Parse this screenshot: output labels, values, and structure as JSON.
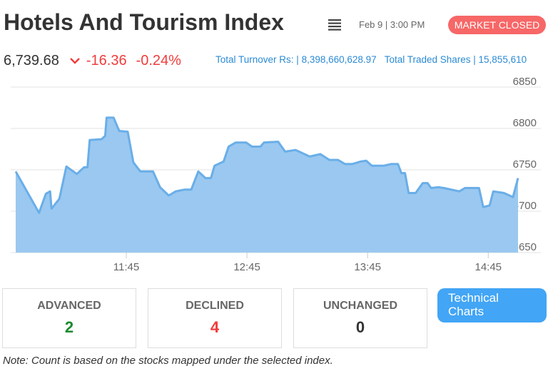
{
  "header": {
    "title": "Hotels And Tourism Index",
    "date": "Feb 9",
    "time": "3:00 PM",
    "status": "MARKET CLOSED"
  },
  "summary": {
    "value": "6,739.68",
    "change": "-16.36",
    "change_percent": "-0.24%",
    "turnover_label": "Total Turnover Rs:",
    "turnover": "8,398,660,628.97",
    "shares_label": "Total Traded Shares",
    "shares": "15,855,610"
  },
  "chart_data": {
    "type": "area",
    "color": "#6aaee8",
    "fill": "#9ac8f0",
    "grid": true,
    "x": [
      650,
      661.6,
      665,
      667.1,
      667.8,
      671.7,
      675.2,
      680.4,
      684,
      685.7,
      686.8,
      692.7,
      694.5,
      695.2,
      698.7,
      701.5,
      705.7,
      708.5,
      712,
      716.2,
      718.3,
      721.8,
      726.1,
      729.6,
      733.8,
      737.3,
      740.8,
      744.4,
      747.1,
      748.9,
      753.4,
      755.9,
      759.4,
      764.6,
      767.5,
      771.7,
      773.5,
      780.5,
      784,
      789.2,
      796.2,
      801.5,
      806,
      810.2,
      813.8,
      817.3,
      821.5,
      824.3,
      827.1,
      833.1,
      836.6,
      840.1,
      841.8,
      843.6,
      845.4,
      848.9,
      852.4,
      854.8,
      856.6,
      860.1,
      862.9,
      870.6,
      873.4,
      880.4,
      882.5,
      885.7,
      887.5,
      892.8,
      897.3,
      899.8
    ],
    "values": [
      6748,
      6698,
      6721,
      6724,
      6703,
      6715,
      6754,
      6745,
      6753,
      6753,
      6786,
      6787,
      6791,
      6813,
      6813,
      6797,
      6796,
      6759,
      6748,
      6748,
      6748,
      6729,
      6719,
      6724,
      6726,
      6726,
      6748,
      6740,
      6740,
      6755,
      6760,
      6778,
      6783,
      6783,
      6778,
      6778,
      6783,
      6784,
      6772,
      6774,
      6766,
      6769,
      6762,
      6762,
      6757,
      6757,
      6760,
      6761,
      6755,
      6755,
      6757,
      6757,
      6746,
      6746,
      6722,
      6722,
      6734,
      6734,
      6728,
      6729,
      6728,
      6724,
      6728,
      6728,
      6705,
      6707,
      6724,
      6722,
      6717,
      6740
    ],
    "xlim": [
      650,
      903
    ],
    "xticks": [
      {
        "value": 705,
        "label": "11:45"
      },
      {
        "value": 765,
        "label": "12:45"
      },
      {
        "value": 825,
        "label": "13:45"
      },
      {
        "value": 885,
        "label": "14:45"
      }
    ],
    "ylim": [
      6650,
      6850
    ],
    "yticks": [
      6650,
      6700,
      6750,
      6800,
      6850
    ]
  },
  "counts": [
    {
      "label": "ADVANCED",
      "value": 2,
      "color": "#1a8a2e"
    },
    {
      "label": "DECLINED",
      "value": 4,
      "color": "#f03c3c"
    },
    {
      "label": "UNCHANGED",
      "value": 0,
      "color": "#333333"
    }
  ],
  "button": "Technical Charts",
  "note": "Note: Count is based on the stocks mapped under the selected index."
}
